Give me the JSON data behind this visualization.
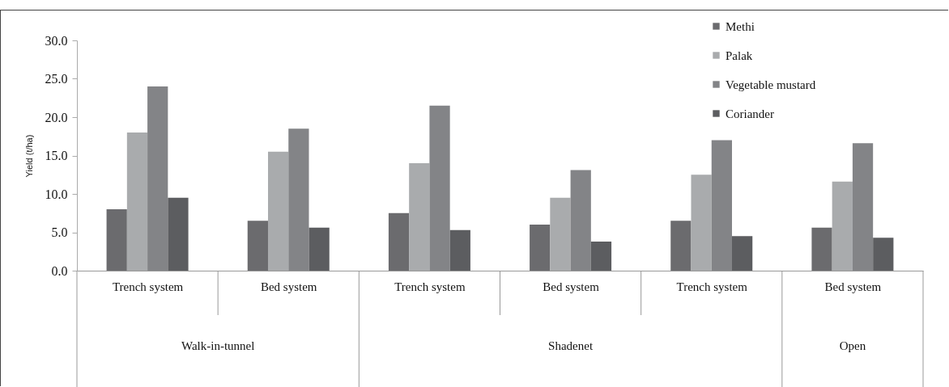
{
  "chart_data": {
    "type": "bar",
    "ylabel": "Yield (t/ha)",
    "categories": [
      "Trench system",
      "Bed system",
      "Trench system",
      "Bed system",
      "Trench system",
      "Bed system"
    ],
    "series": [
      {
        "name": "Methi",
        "color": "#6b6b6e",
        "values": [
          8.0,
          6.5,
          7.5,
          6.0,
          6.5,
          5.6
        ]
      },
      {
        "name": "Palak",
        "color": "#a9abad",
        "values": [
          18.0,
          15.5,
          14.0,
          9.5,
          12.5,
          11.6
        ]
      },
      {
        "name": "Vegetable mustard",
        "color": "#838487",
        "values": [
          24.0,
          18.5,
          21.5,
          13.1,
          17.0,
          16.6
        ]
      },
      {
        "name": "Coriander",
        "color": "#5c5d60",
        "values": [
          9.5,
          5.6,
          5.3,
          3.8,
          4.5,
          4.3
        ]
      }
    ],
    "ylim": [
      0,
      30
    ],
    "yticks": [
      {
        "value": 0,
        "label": "0.0"
      },
      {
        "value": 5,
        "label": "5.0"
      },
      {
        "value": 10,
        "label": "10.0"
      },
      {
        "value": 15,
        "label": "15.0"
      },
      {
        "value": 20,
        "label": "20.0"
      },
      {
        "value": 25,
        "label": "25.0"
      },
      {
        "value": 30,
        "label": "30.0"
      }
    ],
    "annotations": [
      "Walk-in-tunnel",
      "Shadenet",
      "Open"
    ],
    "legend": "top right",
    "grid": false
  }
}
